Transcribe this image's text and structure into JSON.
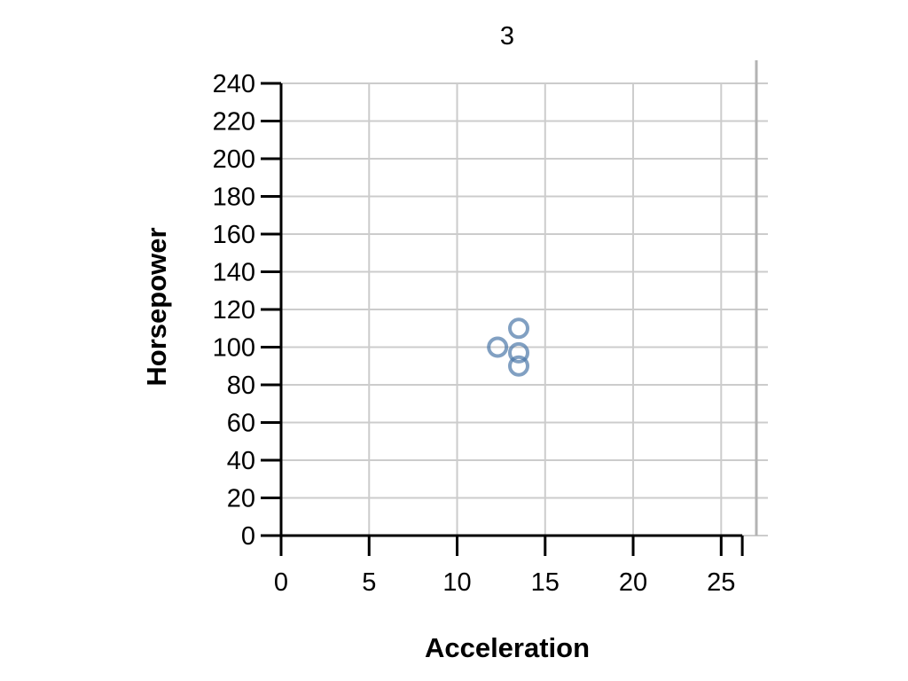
{
  "chart_data": {
    "type": "scatter",
    "title": "3",
    "xlabel": "Acceleration",
    "ylabel": "Horsepower",
    "xlim": [
      0,
      27
    ],
    "ylim": [
      0,
      240
    ],
    "x_ticks": [
      0,
      5,
      10,
      15,
      20,
      25
    ],
    "y_ticks": [
      0,
      20,
      40,
      60,
      80,
      100,
      120,
      140,
      160,
      180,
      200,
      220,
      240
    ],
    "grid": true,
    "point_color": "#4c78a8",
    "series": [
      {
        "points": [
          {
            "x": 13.5,
            "y": 110
          },
          {
            "x": 12.3,
            "y": 100
          },
          {
            "x": 13.5,
            "y": 97
          },
          {
            "x": 13.5,
            "y": 90
          }
        ]
      }
    ]
  }
}
